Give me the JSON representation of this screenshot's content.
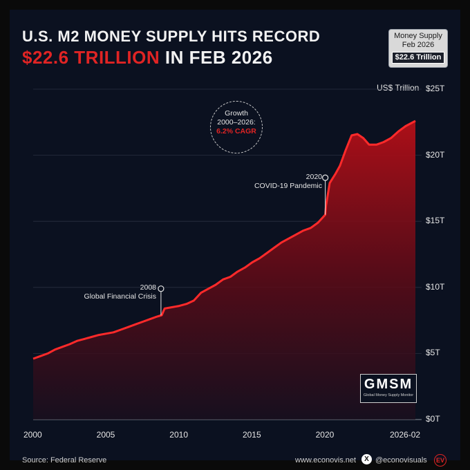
{
  "title_line1": "U.S. M2 MONEY SUPPLY HITS RECORD",
  "title_line2_accent": "$22.6 TRILLION",
  "title_line2_rest": " IN FEB 2026",
  "badge": {
    "line1": "Money Supply",
    "line2": "Feb 2026",
    "value": "$22.6 Trillion"
  },
  "cagr_bubble": {
    "line1": "Growth",
    "line2": "2000–2026:",
    "line3": "6.2% CAGR"
  },
  "annotation_2008": {
    "year": "2008",
    "label": "Global Financial Crisis"
  },
  "annotation_2020": {
    "year": "2020",
    "label": "COVID-19 Pandemic"
  },
  "gmsm": {
    "title": "GMSM",
    "subtitle": "Global Money Supply Monitor"
  },
  "footer": {
    "source": "Source: Federal Reserve",
    "website": "www.econovis.net",
    "handle": "@econovisuals",
    "x_icon": "X",
    "logo": "EV"
  },
  "colors": {
    "accent": "#e02424",
    "line": "#ff2a2a",
    "background": "#0b1120"
  },
  "chart_data": {
    "type": "area",
    "title": "U.S. M2 Money Supply",
    "ylabel": "US$ Trillion",
    "xlabel": "",
    "ylim": [
      0,
      25
    ],
    "xlim": [
      2000,
      2026.17
    ],
    "x_tick_labels": [
      "2000",
      "2005",
      "2010",
      "2015",
      "2020",
      "2026-02"
    ],
    "x_tick_values": [
      2000,
      2005,
      2010,
      2015,
      2020,
      2026.17
    ],
    "y_tick_labels": [
      "$0T",
      "$5T",
      "$10T",
      "$15T",
      "$20T",
      "$25T"
    ],
    "y_tick_values": [
      0,
      5,
      10,
      15,
      20,
      25
    ],
    "grid": true,
    "series": [
      {
        "name": "M2",
        "x": [
          2000,
          2000.5,
          2001,
          2001.5,
          2002,
          2002.5,
          2003,
          2003.5,
          2004,
          2004.5,
          2005,
          2005.5,
          2006,
          2006.5,
          2007,
          2007.5,
          2008,
          2008.5,
          2008.8,
          2009,
          2009.5,
          2010,
          2010.5,
          2011,
          2011.5,
          2012,
          2012.5,
          2013,
          2013.5,
          2014,
          2014.5,
          2015,
          2015.5,
          2016,
          2016.5,
          2017,
          2017.5,
          2018,
          2018.5,
          2019,
          2019.5,
          2020,
          2020.05,
          2020.3,
          2020.7,
          2021,
          2021.4,
          2021.8,
          2022.2,
          2022.6,
          2023,
          2023.5,
          2024,
          2024.5,
          2025,
          2025.5,
          2026.17
        ],
        "values": [
          4.6,
          4.8,
          5.0,
          5.3,
          5.5,
          5.7,
          5.95,
          6.1,
          6.25,
          6.4,
          6.5,
          6.6,
          6.8,
          7.0,
          7.2,
          7.4,
          7.6,
          7.8,
          7.9,
          8.4,
          8.5,
          8.6,
          8.75,
          9.0,
          9.6,
          9.9,
          10.2,
          10.6,
          10.8,
          11.2,
          11.5,
          11.9,
          12.2,
          12.6,
          13.0,
          13.4,
          13.7,
          14.0,
          14.3,
          14.5,
          14.9,
          15.5,
          16.2,
          17.9,
          18.6,
          19.2,
          20.4,
          21.5,
          21.6,
          21.3,
          20.8,
          20.8,
          21.0,
          21.3,
          21.8,
          22.2,
          22.6
        ]
      }
    ],
    "annotations": [
      {
        "x": 2008.75,
        "y": 9.9,
        "text": "2008 Global Financial Crisis"
      },
      {
        "x": 2020,
        "y": 18.3,
        "text": "2020 COVID-19 Pandemic"
      }
    ]
  }
}
